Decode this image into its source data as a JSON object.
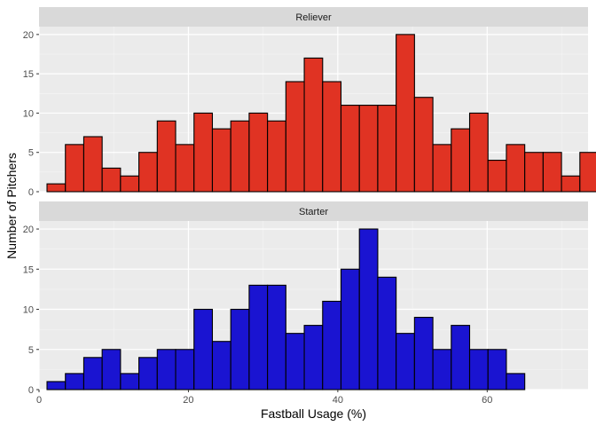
{
  "chart_data": {
    "type": "bar",
    "xlabel": "Fastball Usage (%)",
    "ylabel": "Number of Pitchers",
    "xlim": [
      0,
      73.5
    ],
    "ylim": [
      0,
      21
    ],
    "x_ticks": [
      0,
      20,
      40,
      60
    ],
    "y_ticks": [
      0,
      5,
      10,
      15,
      20
    ],
    "bin_start": 1.07,
    "bin_width": 2.46,
    "grid": true,
    "panels": [
      {
        "label": "Reliever",
        "color": "#e03323",
        "values": [
          1,
          6,
          7,
          3,
          2,
          5,
          9,
          6,
          10,
          8,
          9,
          10,
          9,
          14,
          17,
          14,
          11,
          11,
          11,
          20,
          12,
          6,
          8,
          10,
          4,
          6,
          5,
          5,
          2,
          5
        ]
      },
      {
        "label": "Starter",
        "color": "#1a14d1",
        "values": [
          1,
          2,
          4,
          5,
          2,
          4,
          5,
          5,
          10,
          6,
          10,
          13,
          13,
          7,
          8,
          11,
          15,
          20,
          14,
          7,
          9,
          5,
          8,
          5,
          5,
          2,
          0,
          0,
          0,
          0
        ]
      }
    ]
  }
}
